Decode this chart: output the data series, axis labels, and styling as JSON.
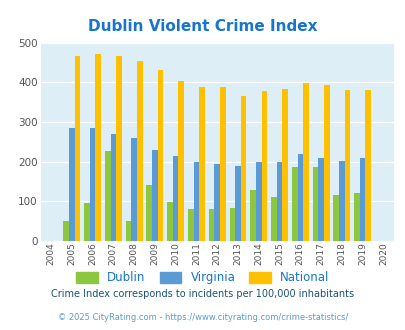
{
  "title": "Dublin Violent Crime Index",
  "years": [
    2004,
    2005,
    2006,
    2007,
    2008,
    2009,
    2010,
    2011,
    2012,
    2013,
    2014,
    2015,
    2016,
    2017,
    2018,
    2019,
    2020
  ],
  "dublin": [
    null,
    50,
    95,
    228,
    50,
    142,
    97,
    80,
    80,
    83,
    128,
    112,
    187,
    187,
    115,
    120,
    null
  ],
  "virginia": [
    null,
    284,
    284,
    270,
    260,
    230,
    215,
    200,
    195,
    190,
    200,
    200,
    220,
    210,
    202,
    210,
    null
  ],
  "national": [
    null,
    468,
    473,
    467,
    455,
    432,
    405,
    388,
    388,
    367,
    378,
    384,
    398,
    394,
    380,
    380,
    null
  ],
  "bar_width": 0.27,
  "colors": {
    "dublin": "#8dc63f",
    "virginia": "#5b9bd5",
    "national": "#ffc000"
  },
  "bg_color": "#ddeef6",
  "ylim": [
    0,
    500
  ],
  "yticks": [
    0,
    100,
    200,
    300,
    400,
    500
  ],
  "title_color": "#1874cd",
  "title_fontsize": 11,
  "legend_labels": [
    "Dublin",
    "Virginia",
    "National"
  ],
  "footnote1": "Crime Index corresponds to incidents per 100,000 inhabitants",
  "footnote2": "© 2025 CityRating.com - https://www.cityrating.com/crime-statistics/",
  "footnote1_color": "#1a5276",
  "footnote2_color": "#5b9bd5",
  "grid_color": "#c8dde8"
}
